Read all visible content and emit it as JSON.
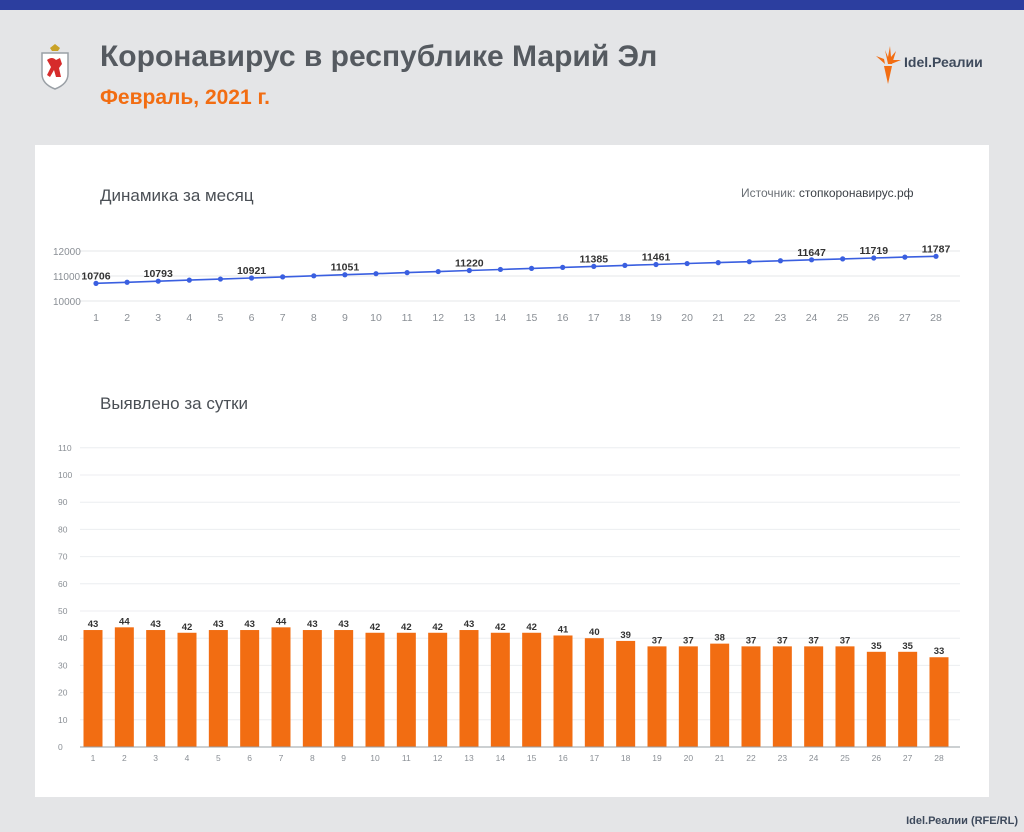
{
  "header": {
    "title": "Коронавирус в республике Марий Эл",
    "subtitle": "Февраль, 2021 г.",
    "brand": "Idel.Реалии"
  },
  "colors": {
    "accent": "#f26d12",
    "line": "#3a5fe0",
    "topbar": "#2c3e9f"
  },
  "footer": {
    "credit": "Idel.Реалии (RFE/RL)"
  },
  "chart_data": [
    {
      "type": "line",
      "title": "Динамика за месяц",
      "source_label": "Источник:",
      "source_value": "стопкоронавирус.рф",
      "x": [
        1,
        2,
        3,
        4,
        5,
        6,
        7,
        8,
        9,
        10,
        11,
        12,
        13,
        14,
        15,
        16,
        17,
        18,
        19,
        20,
        21,
        22,
        23,
        24,
        25,
        26,
        27,
        28
      ],
      "values": [
        10706,
        10750,
        10793,
        10835,
        10878,
        10921,
        10964,
        11007,
        11051,
        11093,
        11135,
        11177,
        11220,
        11262,
        11304,
        11345,
        11385,
        11424,
        11461,
        11498,
        11536,
        11573,
        11610,
        11647,
        11684,
        11719,
        11756,
        11787
      ],
      "labeled_x": [
        1,
        3,
        6,
        9,
        13,
        17,
        19,
        24,
        26,
        28
      ],
      "yticks": [
        10000,
        11000,
        12000
      ],
      "ylim": [
        10000,
        12000
      ],
      "grid": true
    },
    {
      "type": "bar",
      "title": "Выявлено за сутки",
      "categories": [
        1,
        2,
        3,
        4,
        5,
        6,
        7,
        8,
        9,
        10,
        11,
        12,
        13,
        14,
        15,
        16,
        17,
        18,
        19,
        20,
        21,
        22,
        23,
        24,
        25,
        26,
        27,
        28
      ],
      "values": [
        43,
        44,
        43,
        42,
        43,
        43,
        44,
        43,
        43,
        42,
        42,
        42,
        43,
        42,
        42,
        41,
        40,
        39,
        37,
        37,
        38,
        37,
        37,
        37,
        37,
        35,
        35,
        33
      ],
      "yticks": [
        0,
        10,
        20,
        30,
        40,
        50,
        60,
        70,
        80,
        90,
        100,
        110
      ],
      "ylim": [
        0,
        110
      ],
      "grid": true,
      "data_labels": true
    }
  ]
}
